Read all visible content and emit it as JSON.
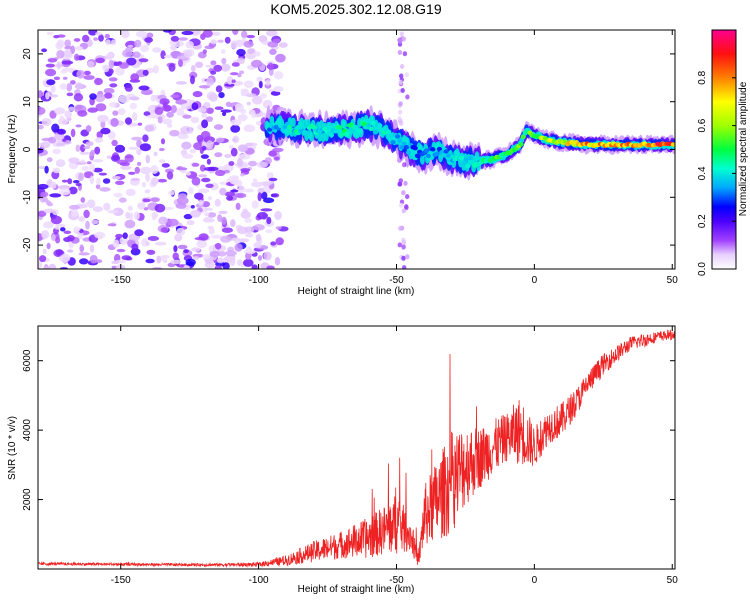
{
  "title": "KOM5.2025.302.12.08.G19",
  "colors": {
    "snr_line": "#ee2222",
    "axis": "#000000",
    "colormap": [
      "#ffffff",
      "#9400d3",
      "#4b00ff",
      "#0000ff",
      "#00c8ff",
      "#00ff80",
      "#80ff00",
      "#ffff00",
      "#ff8000",
      "#ff0040",
      "#ff0080"
    ]
  },
  "chart_data": [
    {
      "type": "heatmap",
      "title": "KOM5.2025.302.12.08.G19",
      "xlabel": "Height of straight line (km)",
      "ylabel": "Frequency (Hz)",
      "xlim": [
        -180,
        51
      ],
      "ylim": [
        -25,
        25
      ],
      "x_ticks": [
        -150,
        -100,
        -50,
        0,
        50
      ],
      "x_tick_labels": [
        "-150",
        "-100",
        "-50",
        "0",
        "50"
      ],
      "y_ticks": [
        -20,
        -10,
        0,
        10,
        20
      ],
      "y_tick_labels": [
        "-20",
        "-10",
        "0",
        "10",
        "20"
      ],
      "colorbar": {
        "label": "Normalized spectral amplitude",
        "range": [
          0,
          1
        ],
        "ticks": [
          0.0,
          0.2,
          0.4,
          0.6,
          0.8
        ],
        "tick_labels": [
          "0.0",
          "0.2",
          "0.4",
          "0.6",
          "0.8"
        ]
      },
      "ridge": {
        "description_points_km": [
          -97,
          -90,
          -80,
          -70,
          -60,
          -55,
          -50,
          -45,
          -40,
          -35,
          -30,
          -25,
          -20,
          -15,
          -10,
          -5,
          -3,
          0,
          5,
          10,
          20,
          30,
          40,
          50
        ],
        "frequency_hz": [
          5,
          4.5,
          4,
          4,
          5,
          4,
          2,
          0,
          -1,
          0,
          -2,
          -2.5,
          -2.5,
          -2,
          -1,
          1,
          4,
          3,
          2,
          1.5,
          1,
          1,
          1,
          1
        ],
        "amplitude": [
          0.35,
          0.45,
          0.45,
          0.5,
          0.5,
          0.45,
          0.4,
          0.35,
          0.3,
          0.35,
          0.4,
          0.45,
          0.5,
          0.55,
          0.6,
          0.65,
          0.55,
          0.6,
          0.7,
          0.75,
          0.85,
          0.85,
          0.9,
          0.95
        ]
      },
      "noise_region_km": [
        -180,
        -95
      ]
    },
    {
      "type": "line",
      "xlabel": "Height of straight line (km)",
      "ylabel": "SNR (10 * v/v)",
      "xlim": [
        -180,
        51
      ],
      "ylim": [
        0,
        7000
      ],
      "x_ticks": [
        -150,
        -100,
        -50,
        0,
        50
      ],
      "x_tick_labels": [
        "-150",
        "-100",
        "-50",
        "0",
        "50"
      ],
      "y_ticks": [
        2000,
        4000,
        6000
      ],
      "y_tick_labels": [
        "2000",
        "4000",
        "6000"
      ],
      "series": [
        {
          "name": "SNR",
          "x": [
            -180,
            -160,
            -140,
            -120,
            -100,
            -90,
            -80,
            -70,
            -60,
            -55,
            -50,
            -45,
            -42,
            -40,
            -35,
            -30,
            -25,
            -20,
            -15,
            -10,
            -5,
            0,
            5,
            10,
            15,
            20,
            25,
            30,
            35,
            40,
            45,
            50
          ],
          "y": [
            150,
            140,
            130,
            120,
            130,
            250,
            500,
            700,
            900,
            1100,
            1300,
            1000,
            200,
            1500,
            2000,
            2500,
            3000,
            3200,
            3500,
            3800,
            4000,
            3500,
            4100,
            4300,
            4800,
            5400,
            5900,
            6200,
            6500,
            6600,
            6700,
            6750
          ],
          "noise_amplitude": [
            40,
            40,
            40,
            40,
            60,
            150,
            300,
            400,
            600,
            700,
            900,
            500,
            150,
            900,
            1200,
            1500,
            1200,
            900,
            800,
            700,
            1000,
            600,
            500,
            500,
            400,
            350,
            300,
            250,
            200,
            200,
            150,
            150
          ]
        }
      ]
    }
  ]
}
